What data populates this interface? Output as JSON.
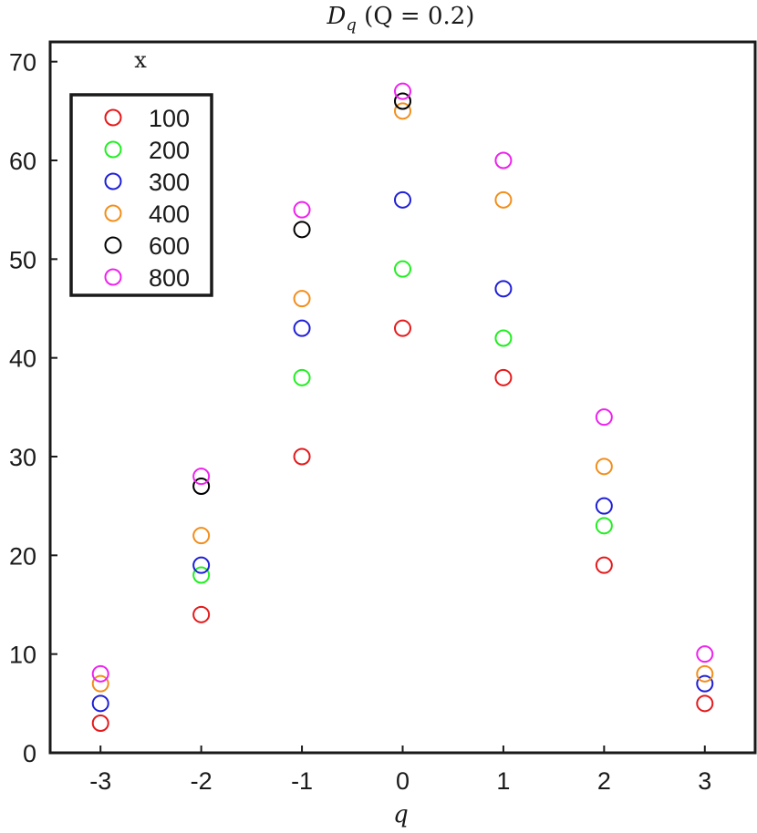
{
  "chart_data": {
    "type": "scatter",
    "title": "D_q (Q = 0.2)",
    "title_parts": {
      "main": "D",
      "sub": "q",
      "rest": " (Q = 0.2)"
    },
    "xlabel": "q",
    "ylabel": "",
    "x": [
      -3,
      -2,
      -1,
      0,
      1,
      2,
      3
    ],
    "xlim": [
      -3.5,
      3.5
    ],
    "ylim": [
      0,
      72
    ],
    "xticks": [
      "-3",
      "-2",
      "-1",
      "0",
      "1",
      "2",
      "3"
    ],
    "yticks": [
      "0",
      "10",
      "20",
      "30",
      "40",
      "50",
      "60",
      "70"
    ],
    "grid": false,
    "legend": {
      "title": "x",
      "placement": "top-left"
    },
    "marker": "open-circle",
    "series": [
      {
        "name": "100",
        "color": "#e41a1c",
        "values": [
          3,
          14,
          30,
          43,
          38,
          19,
          5
        ]
      },
      {
        "name": "200",
        "color": "#22ee22",
        "values": [
          null,
          18,
          38,
          49,
          42,
          23,
          null
        ]
      },
      {
        "name": "300",
        "color": "#1f1fd6",
        "values": [
          5,
          19,
          43,
          56,
          47,
          25,
          7
        ]
      },
      {
        "name": "400",
        "color": "#f28e1c",
        "values": [
          7,
          22,
          46,
          65,
          56,
          29,
          8
        ]
      },
      {
        "name": "600",
        "color": "#000000",
        "values": [
          null,
          27,
          53,
          66,
          null,
          null,
          null
        ]
      },
      {
        "name": "800",
        "color": "#ee22ee",
        "values": [
          8,
          28,
          55,
          67,
          60,
          34,
          10
        ]
      }
    ]
  }
}
